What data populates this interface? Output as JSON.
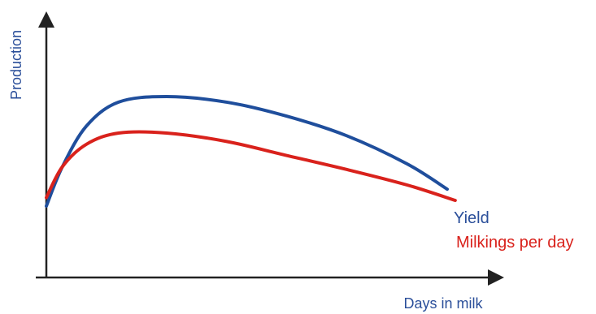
{
  "chart_data": {
    "type": "line",
    "title": "",
    "xlabel": "Days in milk",
    "ylabel": "Production",
    "grid": false,
    "legend": "inline-labels-at-line-ends",
    "colors": {
      "axis": "#222222",
      "yield": "#1f4e9c",
      "milkings": "#d9221c",
      "label_text": "#2b4f9a"
    },
    "series": [
      {
        "name": "Yield",
        "color": "#1f4e9c",
        "points": [
          [
            0,
            0.22
          ],
          [
            4,
            0.5
          ],
          [
            10,
            0.79
          ],
          [
            18,
            0.96
          ],
          [
            30,
            1.0
          ],
          [
            45,
            0.96
          ],
          [
            60,
            0.86
          ],
          [
            75,
            0.72
          ],
          [
            90,
            0.52
          ],
          [
            100,
            0.34
          ]
        ]
      },
      {
        "name": "Milkings per day",
        "color": "#d9221c",
        "points": [
          [
            0,
            0.28
          ],
          [
            4,
            0.5
          ],
          [
            10,
            0.66
          ],
          [
            18,
            0.74
          ],
          [
            30,
            0.74
          ],
          [
            45,
            0.68
          ],
          [
            60,
            0.58
          ],
          [
            75,
            0.48
          ],
          [
            90,
            0.37
          ],
          [
            102,
            0.26
          ]
        ]
      }
    ]
  }
}
